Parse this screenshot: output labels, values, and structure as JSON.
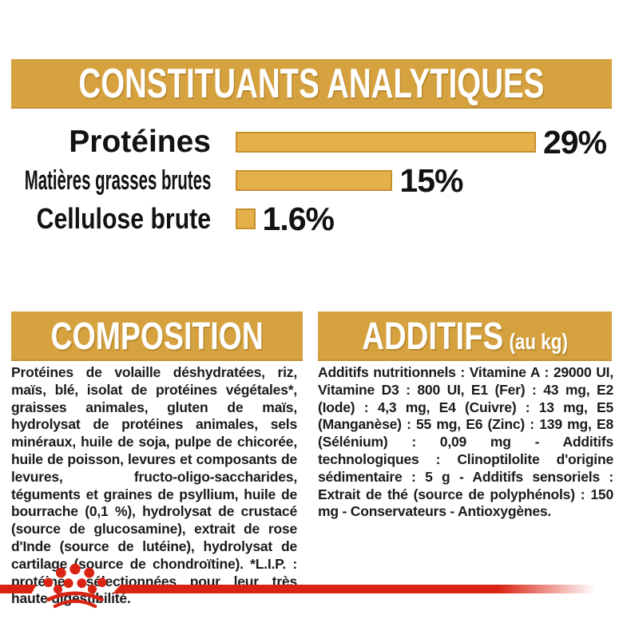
{
  "colors": {
    "gold_banner": "#d6a23f",
    "bar_fill": "#e4b04a",
    "bar_border": "#c6902e",
    "text_black": "#161616",
    "brand_red": "#da2413",
    "banner_text_white": "#ffffff"
  },
  "title_banner": {
    "label": "CONSTITUANTS ANALYTIQUES"
  },
  "chart_data": {
    "type": "bar",
    "orientation": "horizontal",
    "title": "CONSTITUANTS ANALYTIQUES",
    "categories": [
      "Protéines",
      "Matières grasses brutes",
      "Cellulose brute"
    ],
    "values": [
      29,
      15,
      1.6
    ],
    "value_labels": [
      "29%",
      "15%",
      "1.6%"
    ],
    "unit": "%",
    "xlim": [
      0,
      29
    ],
    "grid": false,
    "legend": false,
    "bar_color": "#e4b04a"
  },
  "composition": {
    "heading": "COMPOSITION",
    "body": "Protéines de volaille déshydratées, riz, maïs, blé, isolat de protéines végétales*, graisses animales, gluten de maïs, hydrolysat de protéines animales, sels minéraux, huile de soja, pulpe de chicorée, huile de poisson, levures et composants de levures, fructo-oligo-saccharides, téguments et graines de psyllium, huile de bourrache (0,1 %), hydrolysat de crustacé (source de glucosamine), extrait de rose d'Inde (source de lutéine), hydrolysat de cartilage (source de chondroïtine). *L.I.P. : protéines sélectionnées pour leur très haute digestibilité."
  },
  "additifs": {
    "heading": "ADDITIFS",
    "heading_suffix": "(au kg)",
    "body": "Additifs nutritionnels : Vitamine A : 29000 UI, Vitamine D3 : 800 UI, E1 (Fer) : 43 mg, E2 (Iode) : 4,3 mg, E4 (Cuivre) : 13 mg, E5 (Manganèse) : 55 mg, E6 (Zinc) : 139 mg, E8 (Sélénium) : 0,09 mg - Additifs technologiques : Clinoptilolite d'origine sédimentaire : 5 g - Additifs sensoriels : Extrait de thé (source de polyphénols) : 150 mg - Conservateurs - Antioxygènes."
  },
  "footer": {
    "brand_logo": "royal-canin-crown"
  }
}
